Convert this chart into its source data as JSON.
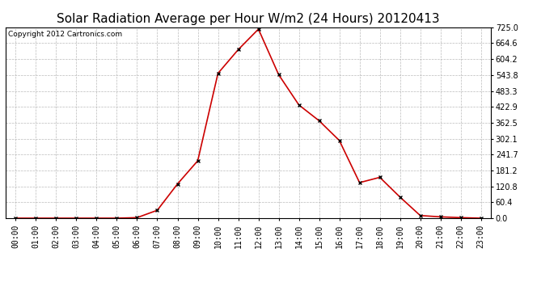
{
  "title": "Solar Radiation Average per Hour W/m2 (24 Hours) 20120413",
  "copyright_text": "Copyright 2012 Cartronics.com",
  "hours": [
    "00:00",
    "01:00",
    "02:00",
    "03:00",
    "04:00",
    "05:00",
    "06:00",
    "07:00",
    "08:00",
    "09:00",
    "10:00",
    "11:00",
    "12:00",
    "13:00",
    "14:00",
    "15:00",
    "16:00",
    "17:00",
    "18:00",
    "19:00",
    "20:00",
    "21:00",
    "22:00",
    "23:00"
  ],
  "values": [
    0,
    0,
    0,
    0,
    0,
    0,
    2,
    30,
    130,
    218,
    550,
    640,
    718,
    545,
    430,
    370,
    295,
    135,
    155,
    80,
    10,
    5,
    2,
    0
  ],
  "line_color": "#cc0000",
  "marker": "x",
  "marker_color": "#000000",
  "ylim": [
    0,
    725.0
  ],
  "yticks": [
    0.0,
    60.4,
    120.8,
    181.2,
    241.7,
    302.1,
    362.5,
    422.9,
    483.3,
    543.8,
    604.2,
    664.6,
    725.0
  ],
  "background_color": "#ffffff",
  "grid_color": "#aaaaaa",
  "title_fontsize": 11,
  "tick_fontsize": 7,
  "copyright_fontsize": 6.5
}
